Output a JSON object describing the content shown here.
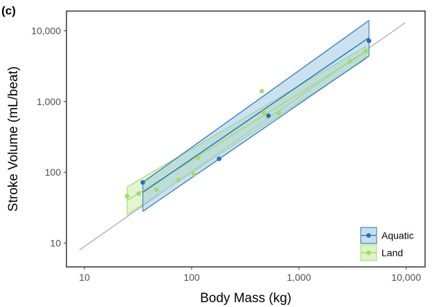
{
  "chart_data": {
    "type": "scatter",
    "panel_label": "(c)",
    "xlabel": "Body Mass (kg)",
    "ylabel": "Stroke Volume (mL/beat)",
    "x_scale": "log10",
    "y_scale": "log10",
    "xlim": [
      6.8,
      15000
    ],
    "ylim": [
      4.6,
      19000
    ],
    "x_ticks": [
      10,
      100,
      1000,
      10000
    ],
    "x_tick_labels": [
      "10",
      "100",
      "1,000",
      "10,000"
    ],
    "y_ticks": [
      10,
      100,
      1000,
      10000
    ],
    "y_tick_labels": [
      "10",
      "100",
      "1,000",
      "10,000"
    ],
    "grid": false,
    "legend_position": "bottom-right",
    "reference_line": {
      "color": "#aaaaaa",
      "points": [
        [
          9,
          8
        ],
        [
          9800,
          13000
        ]
      ]
    },
    "series": [
      {
        "name": "Aquatic",
        "color": "#2171b5",
        "fill": "#9ecae1",
        "points": [
          [
            35,
            72
          ],
          [
            180,
            155
          ],
          [
            520,
            630
          ],
          [
            4500,
            7200
          ]
        ],
        "fit": [
          [
            35,
            52
          ],
          [
            4500,
            8000
          ]
        ],
        "ci_upper": [
          [
            35,
            72
          ],
          [
            4500,
            14000
          ]
        ],
        "ci_lower": [
          [
            35,
            28
          ],
          [
            4500,
            4400
          ]
        ]
      },
      {
        "name": "Land",
        "color": "#a6d96a",
        "fill": "#c7e9a0",
        "points": [
          [
            25,
            46
          ],
          [
            32,
            50
          ],
          [
            47,
            57
          ],
          [
            75,
            78
          ],
          [
            105,
            93
          ],
          [
            115,
            160
          ],
          [
            450,
            1400
          ],
          [
            470,
            700
          ],
          [
            650,
            690
          ],
          [
            3000,
            3700
          ],
          [
            4200,
            5100
          ]
        ],
        "fit": [
          [
            25,
            40
          ],
          [
            4200,
            5000
          ]
        ],
        "ci_upper": [
          [
            25,
            62
          ],
          [
            4200,
            6000
          ]
        ],
        "ci_lower": [
          [
            25,
            25
          ],
          [
            4200,
            4000
          ]
        ]
      }
    ]
  }
}
